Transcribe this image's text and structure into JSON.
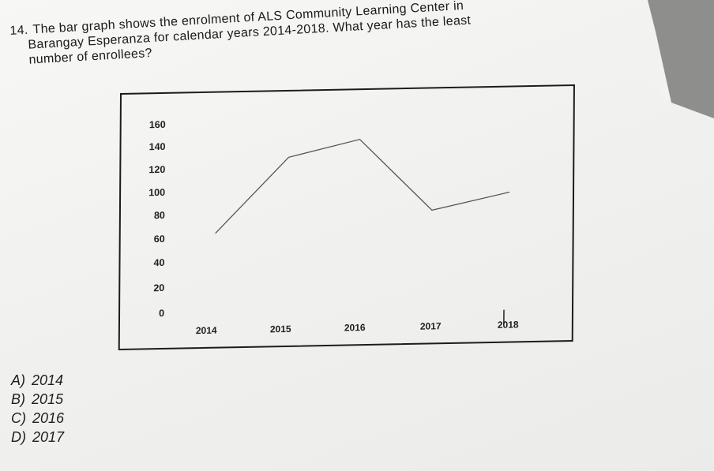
{
  "question": {
    "number": "14.",
    "line1": "The bar graph shows the enrolment of ALS Community Learning Center in",
    "line2": "Barangay Esperanza for calendar years 2014-2018. What year has the least",
    "line3": "number of enrollees?"
  },
  "options": [
    {
      "label": "A)",
      "value": "2014"
    },
    {
      "label": "B)",
      "value": "2015"
    },
    {
      "label": "C)",
      "value": "2016"
    },
    {
      "label": "D)",
      "value": "2017"
    }
  ],
  "chart_data": {
    "type": "line",
    "title": "",
    "xlabel": "",
    "ylabel": "",
    "categories": [
      "2014",
      "2015",
      "2016",
      "2017",
      "2018"
    ],
    "values": [
      68,
      131,
      145,
      84,
      98
    ],
    "y_ticks": [
      "160",
      "140",
      "120",
      "100",
      "80",
      "60",
      "40",
      "20",
      "0"
    ],
    "ylim": [
      0,
      160
    ],
    "grid": false,
    "legend": false,
    "line_color": "#555555"
  }
}
